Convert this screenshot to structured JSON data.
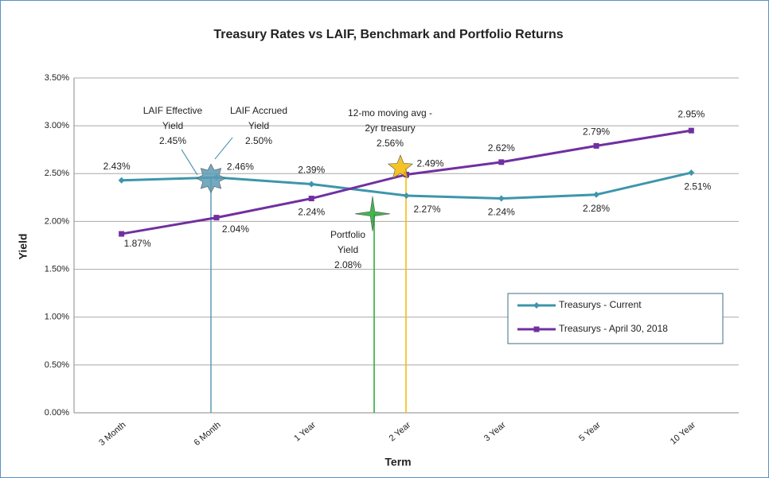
{
  "chart_data": {
    "type": "line",
    "title": "Treasury Rates vs LAIF, Benchmark and Portfolio Returns",
    "x_label": "Term",
    "y_label": "Yield",
    "categories": [
      "3 Month",
      "6 Month",
      "1 Year",
      "2 Year",
      "3 Year",
      "5 Year",
      "10 Year"
    ],
    "series": [
      {
        "name": "Treasurys - Current",
        "color": "#3d96ab",
        "values": [
          2.43,
          2.46,
          2.39,
          2.27,
          2.24,
          2.28,
          2.51
        ],
        "value_labels": [
          "2.43%",
          "2.46%",
          "2.39%",
          "2.27%",
          "2.24%",
          "2.28%",
          "2.51%"
        ]
      },
      {
        "name": "Treasurys - April 30, 2018",
        "color": "#7030a0",
        "values": [
          1.87,
          2.04,
          2.24,
          2.49,
          2.62,
          2.79,
          2.95
        ],
        "value_labels": [
          "1.87%",
          "2.04%",
          "2.24%",
          "2.49%",
          "2.62%",
          "2.79%",
          "2.95%"
        ]
      }
    ],
    "ylim": [
      0,
      3.5
    ],
    "yticks": [
      {
        "value": 0,
        "label": "0.00%"
      },
      {
        "value": 0.5,
        "label": "0.50%"
      },
      {
        "value": 1,
        "label": "1.00%"
      },
      {
        "value": 1.5,
        "label": "1.50%"
      },
      {
        "value": 2,
        "label": "2.00%"
      },
      {
        "value": 2.5,
        "label": "2.50%"
      },
      {
        "value": 3,
        "label": "3.00%"
      },
      {
        "value": 3.5,
        "label": "3.50%"
      }
    ],
    "grid": true,
    "legend": "lower right",
    "annotations": [
      {
        "lines": [
          "LAIF Effective",
          "Yield"
        ],
        "value": 2.45,
        "value_label": "2.45%",
        "color": "#5b9bb5"
      },
      {
        "lines": [
          "LAIF Accrued",
          "Yield"
        ],
        "value": 2.5,
        "value_label": "2.50%",
        "color": "#5b9bb5"
      },
      {
        "lines": [
          "12-mo moving avg -",
          "2yr treasury"
        ],
        "value": 2.56,
        "value_label": "2.56%",
        "color": "#f5b800"
      },
      {
        "lines": [
          "Portfolio",
          "Yield"
        ],
        "value": 2.08,
        "value_label": "2.08%",
        "color": "#22a832"
      }
    ]
  }
}
